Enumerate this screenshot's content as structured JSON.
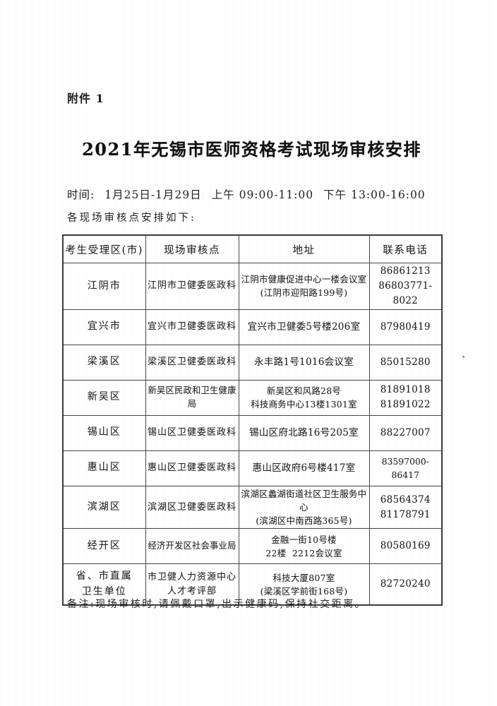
{
  "page": {
    "attachment_label": "附件 1",
    "title": "2021年无锡市医师资格考试现场审核安排",
    "intro_line": "各现场审核点安排如下:",
    "note": "备注:现场审核时,请佩戴口罩,出示健康码,保持社交距离。"
  },
  "schedule": {
    "label": "时间:",
    "date_range": "1月25日-1月29日",
    "morning": "上午 09:00-11:00",
    "afternoon": "下午 13:00-16:00"
  },
  "table": {
    "headers": [
      "考生受理区(市)",
      "现场审核点",
      "地址",
      "联系电话"
    ],
    "rows": [
      {
        "district": [
          "江阴市"
        ],
        "point": [
          "江阴市卫健委医政科"
        ],
        "address": [
          "江阴市健康促进中心一楼会议室",
          "(江阴市迎阳路199号)"
        ],
        "phone": [
          "86861213",
          "86803771-8022"
        ]
      },
      {
        "district": [
          "宜兴市"
        ],
        "point": [
          "宜兴市卫健委医政科"
        ],
        "address": [
          "宜兴市卫健委5号楼206室"
        ],
        "phone": [
          "87980419"
        ]
      },
      {
        "district": [
          "梁溪区"
        ],
        "point": [
          "梁溪区卫健委医政科"
        ],
        "address": [
          "永丰路1号1016会议室"
        ],
        "phone": [
          "85015280"
        ]
      },
      {
        "district": [
          "新吴区"
        ],
        "point": [
          "新吴区民政和卫生健康局"
        ],
        "address": [
          "新吴区和风路28号",
          "科技商务中心13楼1301室"
        ],
        "phone": [
          "81891018",
          "81891022"
        ]
      },
      {
        "district": [
          "锡山区"
        ],
        "point": [
          "锡山区卫健委医政科"
        ],
        "address": [
          "锡山区府北路16号205室"
        ],
        "phone": [
          "88227007"
        ]
      },
      {
        "district": [
          "惠山区"
        ],
        "point": [
          "惠山区卫健委医政科"
        ],
        "address": [
          "惠山区政府6号楼417室"
        ],
        "phone": [
          "83597000-86417"
        ]
      },
      {
        "district": [
          "滨湖区"
        ],
        "point": [
          "滨湖区卫健委医政科"
        ],
        "address": [
          "滨湖区蠡湖街道社区卫生服务中心",
          "(滨湖区中南西路365号)"
        ],
        "phone": [
          "68564374",
          "81178791"
        ]
      },
      {
        "district": [
          "经开区"
        ],
        "point": [
          "经济开发区社会事业局"
        ],
        "address": [
          "金融一街10号楼",
          "22楼  2212会议室"
        ],
        "phone": [
          "80580169"
        ]
      },
      {
        "district": [
          "省、市直属",
          "卫生单位"
        ],
        "point": [
          "市卫健人力资源中心",
          "人才考评部"
        ],
        "address": [
          "科技大厦807室",
          "(梁溪区学前街168号)"
        ],
        "phone": [
          "82720240"
        ]
      }
    ]
  }
}
